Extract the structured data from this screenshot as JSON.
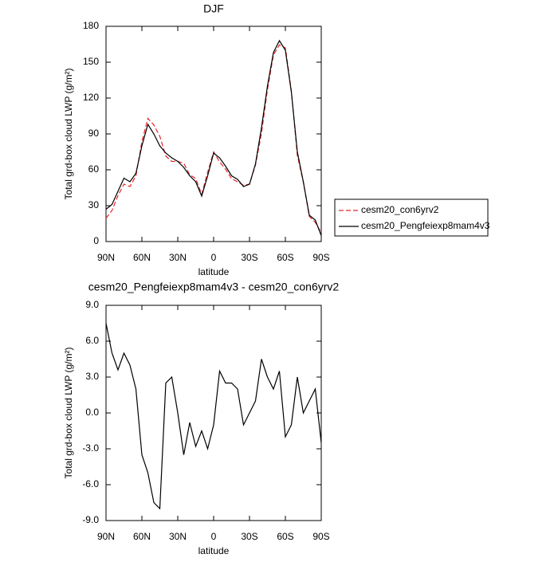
{
  "chart_data": [
    {
      "type": "line",
      "title": "DJF",
      "xlabel": "latitude",
      "ylabel": "Total grd-box cloud LWP (g/m²)",
      "x": [
        90,
        85,
        80,
        75,
        70,
        65,
        60,
        55,
        50,
        45,
        40,
        35,
        30,
        25,
        20,
        15,
        10,
        5,
        0,
        -5,
        -10,
        -15,
        -20,
        -25,
        -30,
        -35,
        -40,
        -45,
        -50,
        -55,
        -60,
        -65,
        -70,
        -75,
        -80,
        -85,
        -90
      ],
      "xlim": [
        90,
        -90
      ],
      "xticks": [
        {
          "value": 90,
          "label": "90N"
        },
        {
          "value": 60,
          "label": "60N"
        },
        {
          "value": 30,
          "label": "30N"
        },
        0,
        {
          "value": -30,
          "label": "30S"
        },
        {
          "value": -60,
          "label": "60S"
        },
        {
          "value": -90,
          "label": "90S"
        }
      ],
      "ylim": [
        0,
        180
      ],
      "yticks": [
        0,
        30,
        60,
        90,
        120,
        150,
        180
      ],
      "legend": "right",
      "series": [
        {
          "name": "cesm20_con6yrv2",
          "color": "#e8262a",
          "style": "dashed",
          "values": [
            19.5,
            26,
            38.4,
            48,
            46,
            55,
            83.5,
            103,
            97.5,
            88,
            71.5,
            67,
            67,
            65.5,
            55.8,
            52.8,
            39.5,
            58,
            75,
            66.5,
            60.5,
            52.5,
            50,
            47,
            48,
            64,
            90.5,
            127,
            156,
            164.5,
            162,
            126,
            72,
            50,
            21,
            16,
            7.5
          ]
        },
        {
          "name": "cesm20_Pengfeiexp8mam4v3",
          "color": "#000000",
          "style": "solid",
          "values": [
            27,
            31,
            42,
            53,
            50,
            57,
            80,
            98,
            90,
            80,
            74,
            70,
            67,
            62,
            55,
            50,
            38,
            55,
            74,
            70,
            63,
            55,
            52,
            46,
            48,
            65,
            95,
            130,
            158,
            168,
            160,
            125,
            75,
            50,
            22,
            18,
            5
          ]
        }
      ]
    },
    {
      "type": "line",
      "title": "cesm20_Pengfeiexp8mam4v3 - cesm20_con6yrv2",
      "xlabel": "latitude",
      "ylabel": "Total grd-box cloud LWP (g/m²)",
      "x": [
        90,
        85,
        80,
        75,
        70,
        65,
        60,
        55,
        50,
        45,
        40,
        35,
        30,
        25,
        20,
        15,
        10,
        5,
        0,
        -5,
        -10,
        -15,
        -20,
        -25,
        -30,
        -35,
        -40,
        -45,
        -50,
        -55,
        -60,
        -65,
        -70,
        -75,
        -80,
        -85,
        -90
      ],
      "xlim": [
        90,
        -90
      ],
      "xticks": [
        {
          "value": 90,
          "label": "90N"
        },
        {
          "value": 60,
          "label": "60N"
        },
        {
          "value": 30,
          "label": "30N"
        },
        0,
        {
          "value": -30,
          "label": "30S"
        },
        {
          "value": -60,
          "label": "60S"
        },
        {
          "value": -90,
          "label": "90S"
        }
      ],
      "ylim": [
        -9,
        9
      ],
      "yticks": [
        {
          "value": -9,
          "label": "-9.0"
        },
        {
          "value": -6,
          "label": "-6.0"
        },
        {
          "value": -3,
          "label": "-3.0"
        },
        {
          "value": 0,
          "label": "0.0"
        },
        {
          "value": 3,
          "label": "3.0"
        },
        {
          "value": 6,
          "label": "6.0"
        },
        {
          "value": 9,
          "label": "9.0"
        }
      ],
      "series": [
        {
          "color": "#000000",
          "style": "solid",
          "values": [
            7.5,
            5,
            3.6,
            5,
            4,
            2,
            -3.5,
            -5,
            -7.5,
            -8,
            2.5,
            3,
            0,
            -3.5,
            -0.8,
            -2.8,
            -1.5,
            -3,
            -1,
            3.5,
            2.5,
            2.5,
            2,
            -1,
            0,
            1,
            4.5,
            3,
            2,
            3.5,
            -2,
            -1,
            3,
            0,
            1,
            2,
            -2.5
          ]
        }
      ]
    }
  ]
}
